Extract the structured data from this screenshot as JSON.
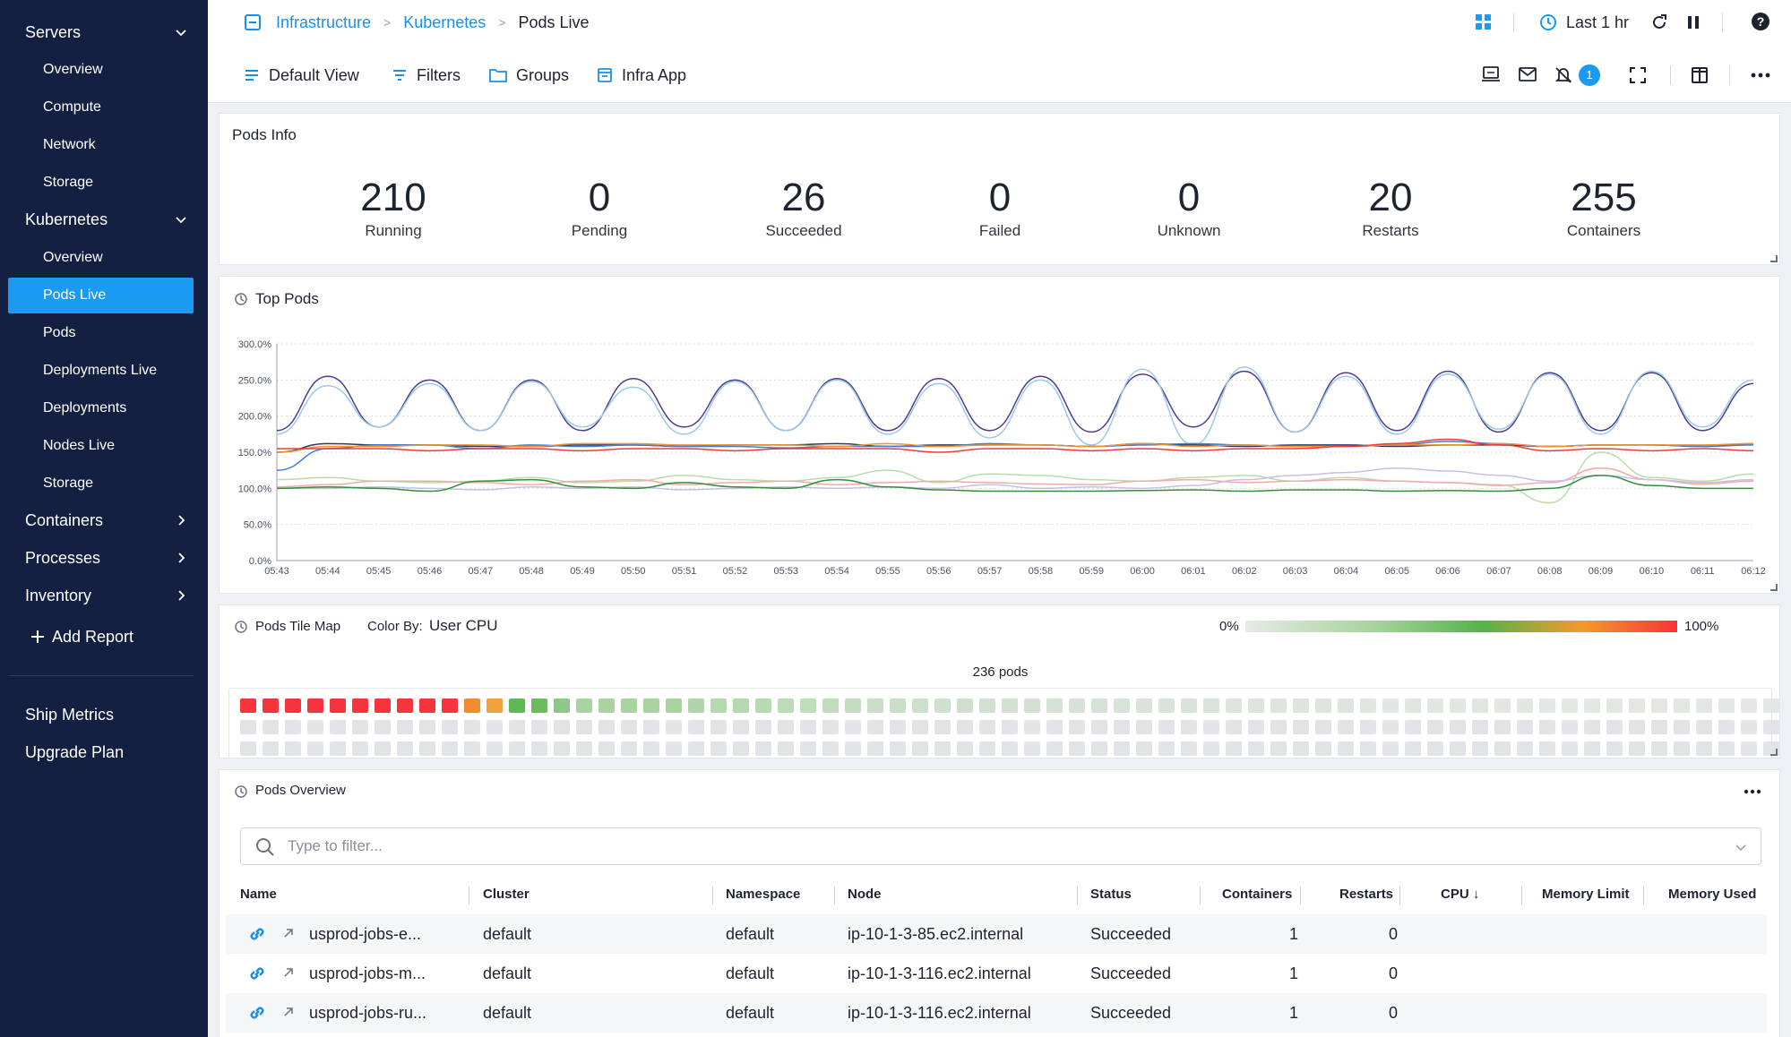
{
  "sidebar": {
    "items": [
      {
        "label": "Servers",
        "type": "top",
        "chevron": "down"
      },
      {
        "label": "Overview",
        "type": "sub"
      },
      {
        "label": "Compute",
        "type": "sub"
      },
      {
        "label": "Network",
        "type": "sub"
      },
      {
        "label": "Storage",
        "type": "sub"
      },
      {
        "label": "Kubernetes",
        "type": "top",
        "chevron": "down"
      },
      {
        "label": "Overview",
        "type": "sub"
      },
      {
        "label": "Pods Live",
        "type": "sub",
        "active": true
      },
      {
        "label": "Pods",
        "type": "sub"
      },
      {
        "label": "Deployments Live",
        "type": "sub"
      },
      {
        "label": "Deployments",
        "type": "sub"
      },
      {
        "label": "Nodes Live",
        "type": "sub"
      },
      {
        "label": "Storage",
        "type": "sub"
      },
      {
        "label": "Containers",
        "type": "top",
        "chevron": "right"
      },
      {
        "label": "Processes",
        "type": "top",
        "chevron": "right"
      },
      {
        "label": "Inventory",
        "type": "top",
        "chevron": "right"
      }
    ],
    "add_report": "Add Report",
    "bottom": [
      "Ship Metrics",
      "Upgrade Plan"
    ]
  },
  "header": {
    "breadcrumb": [
      "Infrastructure",
      "Kubernetes",
      "Pods Live"
    ],
    "time_range": "Last 1 hr",
    "toolbar": {
      "default_view": "Default View",
      "filters": "Filters",
      "groups": "Groups",
      "infra_app": "Infra App"
    },
    "alert_badge": "1"
  },
  "pods_info": {
    "title": "Pods Info",
    "stats": [
      {
        "value": "210",
        "label": "Running"
      },
      {
        "value": "0",
        "label": "Pending"
      },
      {
        "value": "26",
        "label": "Succeeded"
      },
      {
        "value": "0",
        "label": "Failed"
      },
      {
        "value": "0",
        "label": "Unknown"
      },
      {
        "value": "20",
        "label": "Restarts"
      },
      {
        "value": "255",
        "label": "Containers"
      }
    ]
  },
  "top_pods": {
    "title": "Top Pods"
  },
  "chart_data": {
    "type": "line",
    "x": [
      "05:43",
      "05:44",
      "05:45",
      "05:46",
      "05:47",
      "05:48",
      "05:49",
      "05:50",
      "05:51",
      "05:52",
      "05:53",
      "05:54",
      "05:55",
      "05:56",
      "05:57",
      "05:58",
      "05:59",
      "06:00",
      "06:01",
      "06:02",
      "06:03",
      "06:04",
      "06:05",
      "06:06",
      "06:07",
      "06:08",
      "06:09",
      "06:10",
      "06:11",
      "06:12"
    ],
    "yticks": [
      "0.0%",
      "50.0%",
      "100.0%",
      "150.0%",
      "200.0%",
      "250.0%",
      "300.0%"
    ],
    "ylim": [
      0,
      300
    ],
    "grid": true,
    "series": [
      {
        "color": "#4b3f8f",
        "values": [
          180,
          255,
          185,
          250,
          180,
          250,
          180,
          252,
          185,
          250,
          180,
          252,
          180,
          252,
          180,
          255,
          178,
          258,
          185,
          262,
          178,
          260,
          180,
          262,
          178,
          260,
          180,
          260,
          180,
          245
        ]
      },
      {
        "color": "#9ec9e8",
        "values": [
          175,
          242,
          185,
          245,
          180,
          248,
          185,
          240,
          175,
          248,
          180,
          250,
          175,
          245,
          170,
          250,
          160,
          265,
          160,
          268,
          178,
          255,
          175,
          258,
          182,
          258,
          175,
          262,
          185,
          250
        ]
      },
      {
        "color": "#2c3a5a",
        "values": [
          150,
          162,
          160,
          160,
          158,
          158,
          160,
          160,
          158,
          160,
          160,
          162,
          158,
          160,
          160,
          160,
          158,
          162,
          160,
          158,
          160,
          160,
          158,
          160,
          160,
          158,
          160,
          160,
          158,
          162
        ]
      },
      {
        "color": "#3b7dd8",
        "values": [
          125,
          155,
          160,
          160,
          155,
          160,
          158,
          160,
          158,
          158,
          156,
          158,
          158,
          158,
          162,
          160,
          158,
          160,
          162,
          160,
          158,
          158,
          160,
          165,
          162,
          158,
          160,
          160,
          158,
          160
        ]
      },
      {
        "color": "#f0932b",
        "values": [
          150,
          158,
          158,
          160,
          160,
          158,
          162,
          162,
          160,
          160,
          160,
          158,
          162,
          158,
          160,
          160,
          158,
          162,
          158,
          160,
          158,
          158,
          160,
          160,
          162,
          158,
          160,
          160,
          160,
          162
        ]
      },
      {
        "color": "#ef3b3b",
        "values": [
          155,
          155,
          155,
          152,
          155,
          155,
          152,
          155,
          155,
          152,
          155,
          155,
          155,
          150,
          155,
          155,
          152,
          155,
          152,
          155,
          155,
          158,
          162,
          168,
          160,
          152,
          155,
          152,
          155,
          152
        ]
      },
      {
        "color": "#b9dca7",
        "values": [
          112,
          115,
          110,
          108,
          110,
          115,
          108,
          110,
          118,
          112,
          110,
          115,
          125,
          108,
          120,
          118,
          112,
          110,
          115,
          118,
          110,
          115,
          110,
          108,
          105,
          80,
          150,
          115,
          110,
          120
        ]
      },
      {
        "color": "#f4a8a8",
        "values": [
          102,
          105,
          110,
          110,
          108,
          105,
          110,
          112,
          105,
          108,
          110,
          105,
          108,
          110,
          108,
          106,
          105,
          110,
          112,
          108,
          110,
          112,
          110,
          108,
          104,
          108,
          128,
          112,
          106,
          110
        ]
      },
      {
        "color": "#c5bfe3",
        "values": [
          100,
          100,
          102,
          100,
          98,
          102,
          100,
          102,
          98,
          100,
          102,
          100,
          102,
          100,
          105,
          100,
          102,
          100,
          104,
          112,
          118,
          122,
          128,
          124,
          118,
          110,
          118,
          112,
          108,
          112
        ]
      },
      {
        "color": "#2f8f3a",
        "values": [
          100,
          102,
          100,
          96,
          110,
          112,
          102,
          100,
          108,
          102,
          100,
          112,
          102,
          98,
          96,
          96,
          96,
          97,
          98,
          96,
          98,
          98,
          96,
          97,
          96,
          100,
          118,
          104,
          100,
          100
        ]
      }
    ]
  },
  "tile_map": {
    "title": "Pods Tile Map",
    "color_by_label": "Color By:",
    "color_by_value": "User CPU",
    "legend_min": "0%",
    "legend_max": "100%",
    "pod_count_label": "236 pods",
    "first_row_colors": [
      "#f4353e",
      "#f4353e",
      "#f4353e",
      "#f4353e",
      "#f4353e",
      "#f4353e",
      "#f4353e",
      "#f4353e",
      "#f4353e",
      "#f4353e",
      "#f28b2d",
      "#f0a33a",
      "#5eb854",
      "#6cbc5e",
      "#8dc888",
      "#a9d4a2",
      "#a9d4a2",
      "#a9d4a2",
      "#a9d4a2",
      "#a9d4a2",
      "#aed6a8",
      "#b5d9af",
      "#b5d9af",
      "#b8dab3",
      "#bcdcb8",
      "#bfdcbb",
      "#c2ddbe",
      "#c4ddc1",
      "#c8dfc5",
      "#cadfc8",
      "#cde0cb",
      "#cfe0ce",
      "#d0e0cf",
      "#d1e0d0",
      "#d2e1d1",
      "#d3e1d2",
      "#d5e1d4",
      "#d6e2d5",
      "#d7e2d6",
      "#d8e3d7",
      "#d9e3d8",
      "#d9e3d9",
      "#dae3da",
      "#dbe4db",
      "#dce4dc",
      "#dce4dc",
      "#dde5dd",
      "#dde5dd",
      "#dee5de",
      "#dee5de",
      "#dfe6df",
      "#dfe6df",
      "#dfe6df",
      "#e0e6e0",
      "#e0e6e0",
      "#e0e6e0",
      "#e1e6e1",
      "#e1e6e1",
      "#e1e7e1",
      "#e1e7e1",
      "#e1e7e1",
      "#e2e7e2",
      "#e2e7e2",
      "#e2e7e2",
      "#e2e7e2",
      "#e2e7e2",
      "#e3e7e3",
      "#e3e7e3",
      "#e3e7e3",
      "#e3e7e3",
      "#e3e8e3"
    ],
    "grey_color": "#e1e3e6"
  },
  "pods_overview": {
    "title": "Pods Overview",
    "filter_placeholder": "Type to filter...",
    "columns": [
      "Name",
      "Cluster",
      "Namespace",
      "Node",
      "Status",
      "Containers",
      "Restarts",
      "CPU ↓",
      "Memory Limit",
      "Memory Used"
    ],
    "rows": [
      {
        "name": "usprod-jobs-e...",
        "cluster": "default",
        "namespace": "default",
        "node": "ip-10-1-3-85.ec2.internal",
        "status": "Succeeded",
        "containers": "1",
        "restarts": "0"
      },
      {
        "name": "usprod-jobs-m...",
        "cluster": "default",
        "namespace": "default",
        "node": "ip-10-1-3-116.ec2.internal",
        "status": "Succeeded",
        "containers": "1",
        "restarts": "0"
      },
      {
        "name": "usprod-jobs-ru...",
        "cluster": "default",
        "namespace": "default",
        "node": "ip-10-1-3-116.ec2.internal",
        "status": "Succeeded",
        "containers": "1",
        "restarts": "0"
      }
    ]
  },
  "colors": {
    "accent": "#1b9af2",
    "sidebar_bg": "#142041"
  },
  "icons": [
    "chevron-down-icon",
    "chevron-right-icon",
    "plus-icon",
    "dashboard-icon",
    "clock-icon",
    "refresh-icon",
    "pause-icon",
    "help-icon",
    "list-icon",
    "filter-icon",
    "folder-icon",
    "app-icon",
    "monitor-icon",
    "mail-icon",
    "alert-off-icon",
    "fullscreen-icon",
    "split-view-icon",
    "more-icon",
    "history-icon",
    "search-icon",
    "link-icon",
    "external-link-icon"
  ]
}
